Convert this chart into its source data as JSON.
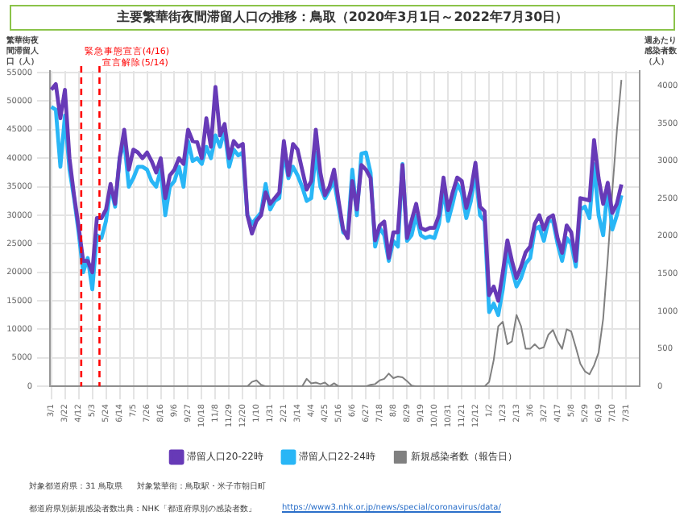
{
  "chart_data": {
    "type": "line",
    "title": "主要繁華街夜間滞留人口の推移：鳥取（2020年3月1日～2022年7月30日）",
    "ylabel": "繁華街夜間滞留人口（人）",
    "y2label": "週あたり感染者数（人）",
    "x": [
      "2020-03-01",
      "2020-03-08",
      "2020-03-15",
      "2020-03-22",
      "2020-03-29",
      "2020-04-05",
      "2020-04-12",
      "2020-04-19",
      "2020-04-26",
      "2020-05-03",
      "2020-05-10",
      "2020-05-17",
      "2020-05-24",
      "2020-05-31",
      "2020-06-07",
      "2020-06-14",
      "2020-06-21",
      "2020-06-28",
      "2020-07-05",
      "2020-07-12",
      "2020-07-19",
      "2020-07-26",
      "2020-08-02",
      "2020-08-09",
      "2020-08-16",
      "2020-08-23",
      "2020-08-30",
      "2020-09-06",
      "2020-09-13",
      "2020-09-20",
      "2020-09-27",
      "2020-10-04",
      "2020-10-11",
      "2020-10-18",
      "2020-10-25",
      "2020-11-01",
      "2020-11-08",
      "2020-11-15",
      "2020-11-22",
      "2020-11-29",
      "2020-12-06",
      "2020-12-13",
      "2020-12-20",
      "2020-12-27",
      "2021-01-03",
      "2021-01-10",
      "2021-01-17",
      "2021-01-24",
      "2021-01-31",
      "2021-02-07",
      "2021-02-14",
      "2021-02-21",
      "2021-02-28",
      "2021-03-07",
      "2021-03-14",
      "2021-03-21",
      "2021-03-28",
      "2021-04-04",
      "2021-04-11",
      "2021-04-18",
      "2021-04-25",
      "2021-05-02",
      "2021-05-09",
      "2021-05-16",
      "2021-05-23",
      "2021-05-30",
      "2021-06-06",
      "2021-06-13",
      "2021-06-20",
      "2021-06-27",
      "2021-07-04",
      "2021-07-11",
      "2021-07-18",
      "2021-07-25",
      "2021-08-01",
      "2021-08-08",
      "2021-08-15",
      "2021-08-22",
      "2021-08-29",
      "2021-09-05",
      "2021-09-12",
      "2021-09-19",
      "2021-09-26",
      "2021-10-03",
      "2021-10-10",
      "2021-10-17",
      "2021-10-24",
      "2021-10-31",
      "2021-11-07",
      "2021-11-14",
      "2021-11-21",
      "2021-11-28",
      "2021-12-05",
      "2021-12-12",
      "2021-12-19",
      "2021-12-26",
      "2022-01-02",
      "2022-01-09",
      "2022-01-16",
      "2022-01-23",
      "2022-01-30",
      "2022-02-06",
      "2022-02-13",
      "2022-02-20",
      "2022-02-27",
      "2022-03-06",
      "2022-03-13",
      "2022-03-20",
      "2022-03-27",
      "2022-04-03",
      "2022-04-10",
      "2022-04-17",
      "2022-04-24",
      "2022-05-01",
      "2022-05-08",
      "2022-05-15",
      "2022-05-22",
      "2022-05-29",
      "2022-06-05",
      "2022-06-12",
      "2022-06-19",
      "2022-06-26",
      "2022-07-03",
      "2022-07-10",
      "2022-07-17",
      "2022-07-24"
    ],
    "series": [
      {
        "name": "滞留人口20-22時",
        "color": "#673ab7",
        "values": [
          52000,
          53000,
          47000,
          52000,
          40000,
          33500,
          28000,
          22000,
          22000,
          20000,
          29500,
          29500,
          31000,
          35500,
          32000,
          40000,
          45000,
          38000,
          41500,
          41000,
          40000,
          41000,
          39500,
          37500,
          40000,
          33000,
          37000,
          38000,
          40000,
          39000,
          45000,
          43000,
          42800,
          40000,
          47000,
          42000,
          52500,
          44000,
          46000,
          40000,
          43000,
          42000,
          42500,
          30000,
          26800,
          29000,
          30000,
          34000,
          32000,
          33000,
          34000,
          43000,
          37000,
          42500,
          41500,
          38000,
          34500,
          36000,
          45000,
          37500,
          33500,
          35000,
          38000,
          32500,
          27500,
          26000,
          36000,
          31000,
          38800,
          38000,
          36500,
          25600,
          28200,
          28900,
          22500,
          27000,
          27000,
          38800,
          26000,
          29100,
          32000,
          27800,
          27400,
          27800,
          27800,
          30000,
          36600,
          30900,
          34000,
          36600,
          36000,
          31300,
          34400,
          39200,
          31500,
          30700,
          16000,
          17500,
          15000,
          20000,
          25600,
          22000,
          19000,
          21000,
          23500,
          24500,
          28500,
          30000,
          27500,
          29500,
          30000,
          26000,
          23400,
          28200,
          27000,
          22000,
          33000,
          32800,
          32600,
          43200,
          36500,
          32000,
          35700,
          30400,
          32000,
          35400
        ]
      },
      {
        "name": "滞留人口22-24時",
        "color": "#29b6f6",
        "values": [
          49000,
          48500,
          38500,
          47500,
          38000,
          33000,
          27000,
          20000,
          22500,
          17000,
          26500,
          26000,
          29000,
          35000,
          31500,
          40000,
          43000,
          35000,
          36500,
          38500,
          38500,
          38000,
          36000,
          35000,
          38000,
          30000,
          35000,
          36000,
          38500,
          35000,
          43000,
          39500,
          40000,
          39000,
          42000,
          40000,
          44000,
          42000,
          45000,
          38500,
          41500,
          40500,
          41000,
          30000,
          28500,
          29500,
          30500,
          35500,
          31000,
          32500,
          33000,
          41000,
          36500,
          38500,
          37000,
          35000,
          32500,
          33000,
          41000,
          35000,
          33000,
          34500,
          36000,
          31500,
          27000,
          26500,
          38000,
          30000,
          40800,
          41000,
          37500,
          24500,
          27800,
          26500,
          22000,
          25500,
          24500,
          39000,
          25500,
          26500,
          30000,
          26500,
          26000,
          26300,
          26000,
          28500,
          34500,
          29000,
          32000,
          35500,
          34000,
          29500,
          32500,
          37500,
          30000,
          29000,
          13000,
          14500,
          12500,
          17000,
          23500,
          20500,
          17500,
          19000,
          21500,
          22500,
          27500,
          28000,
          25500,
          29000,
          29000,
          25000,
          22000,
          26000,
          25000,
          21000,
          31000,
          31500,
          29500,
          39000,
          30000,
          26500,
          35000,
          27500,
          30000,
          33500
        ]
      },
      {
        "name": "新規感染者数（報告日）",
        "color": "#808080",
        "axis": "y2",
        "values": [
          0,
          0,
          0,
          0,
          0,
          0,
          0,
          0,
          0,
          0,
          0,
          0,
          0,
          0,
          0,
          0,
          0,
          0,
          0,
          0,
          0,
          0,
          0,
          0,
          0,
          0,
          0,
          0,
          0,
          0,
          0,
          0,
          0,
          0,
          0,
          0,
          0,
          0,
          0,
          0,
          0,
          0,
          0,
          0,
          60,
          80,
          20,
          0,
          0,
          0,
          0,
          0,
          0,
          0,
          0,
          0,
          100,
          40,
          50,
          30,
          50,
          0,
          40,
          0,
          0,
          0,
          0,
          0,
          0,
          0,
          20,
          30,
          80,
          100,
          170,
          110,
          130,
          120,
          70,
          10,
          0,
          0,
          0,
          0,
          0,
          0,
          0,
          0,
          0,
          0,
          0,
          0,
          0,
          0,
          0,
          0,
          60,
          350,
          800,
          860,
          560,
          600,
          950,
          800,
          500,
          500,
          560,
          500,
          520,
          690,
          750,
          600,
          500,
          760,
          730,
          520,
          300,
          200,
          160,
          280,
          450,
          900,
          1700,
          2600,
          3400,
          4080
        ]
      }
    ],
    "xlim": [
      "2020-02-28",
      "2022-08-21"
    ],
    "xticks": [
      {
        "value": "2020-03-01",
        "label": "3/1"
      },
      {
        "value": "2020-03-22",
        "label": "3/22"
      },
      {
        "value": "2020-04-12",
        "label": "4/12"
      },
      {
        "value": "2020-05-03",
        "label": "5/3"
      },
      {
        "value": "2020-05-24",
        "label": "5/24"
      },
      {
        "value": "2020-06-14",
        "label": "6/14"
      },
      {
        "value": "2020-07-05",
        "label": "7/5"
      },
      {
        "value": "2020-07-26",
        "label": "7/26"
      },
      {
        "value": "2020-08-16",
        "label": "8/16"
      },
      {
        "value": "2020-09-06",
        "label": "9/6"
      },
      {
        "value": "2020-09-27",
        "label": "9/27"
      },
      {
        "value": "2020-10-18",
        "label": "10/18"
      },
      {
        "value": "2020-11-08",
        "label": "11/8"
      },
      {
        "value": "2020-11-29",
        "label": "11/29"
      },
      {
        "value": "2020-12-20",
        "label": "12/20"
      },
      {
        "value": "2021-01-10",
        "label": "1/10"
      },
      {
        "value": "2021-01-31",
        "label": "1/31"
      },
      {
        "value": "2021-02-21",
        "label": "2/21"
      },
      {
        "value": "2021-03-14",
        "label": "3/14"
      },
      {
        "value": "2021-04-04",
        "label": "4/4"
      },
      {
        "value": "2021-04-25",
        "label": "4/25"
      },
      {
        "value": "2021-05-16",
        "label": "5/16"
      },
      {
        "value": "2021-06-06",
        "label": "6/6"
      },
      {
        "value": "2021-06-27",
        "label": "6/27"
      },
      {
        "value": "2021-07-18",
        "label": "7/18"
      },
      {
        "value": "2021-08-08",
        "label": "8/8"
      },
      {
        "value": "2021-08-29",
        "label": "8/29"
      },
      {
        "value": "2021-09-19",
        "label": "9/19"
      },
      {
        "value": "2021-10-10",
        "label": "10/10"
      },
      {
        "value": "2021-10-31",
        "label": "10/31"
      },
      {
        "value": "2021-11-21",
        "label": "11/21"
      },
      {
        "value": "2021-12-12",
        "label": "12/12"
      },
      {
        "value": "2022-01-02",
        "label": "1/2"
      },
      {
        "value": "2022-01-23",
        "label": "1/23"
      },
      {
        "value": "2022-02-13",
        "label": "2/13"
      },
      {
        "value": "2022-03-06",
        "label": "3/6"
      },
      {
        "value": "2022-03-27",
        "label": "3/27"
      },
      {
        "value": "2022-04-17",
        "label": "4/17"
      },
      {
        "value": "2022-05-08",
        "label": "5/8"
      },
      {
        "value": "2022-05-29",
        "label": "5/29"
      },
      {
        "value": "2022-06-19",
        "label": "6/19"
      },
      {
        "value": "2022-07-10",
        "label": "7/10"
      },
      {
        "value": "2022-07-31",
        "label": "7/31"
      }
    ],
    "ylim": [
      0,
      55300
    ],
    "yticks": [
      0,
      5000,
      10000,
      15000,
      20000,
      25000,
      30000,
      35000,
      40000,
      45000,
      50000,
      55000
    ],
    "y2lim": [
      0,
      4200
    ],
    "y2ticks": [
      0,
      500,
      1000,
      1500,
      2000,
      2500,
      3000,
      3500,
      4000
    ],
    "ref_lines": [
      {
        "axis": "x",
        "value": "2020-04-16",
        "label": "緊急事態宣言(4/16)",
        "color": "#ff0000",
        "line_style": "dashed"
      },
      {
        "axis": "x",
        "value": "2020-05-14",
        "label": "宣言解除(5/14)",
        "color": "#ff0000",
        "line_style": "dashed"
      }
    ],
    "grid": true,
    "legend": "bottom",
    "annotations": [
      "対象都道府県：31 鳥取県",
      "対象繁華街：鳥取駅・米子市朝日町",
      "都道府県別新規感染者数出典：NHK「都道府県別の感染者数」",
      "https://www3.nhk.or.jp/news/special/coronavirus/data/"
    ]
  }
}
